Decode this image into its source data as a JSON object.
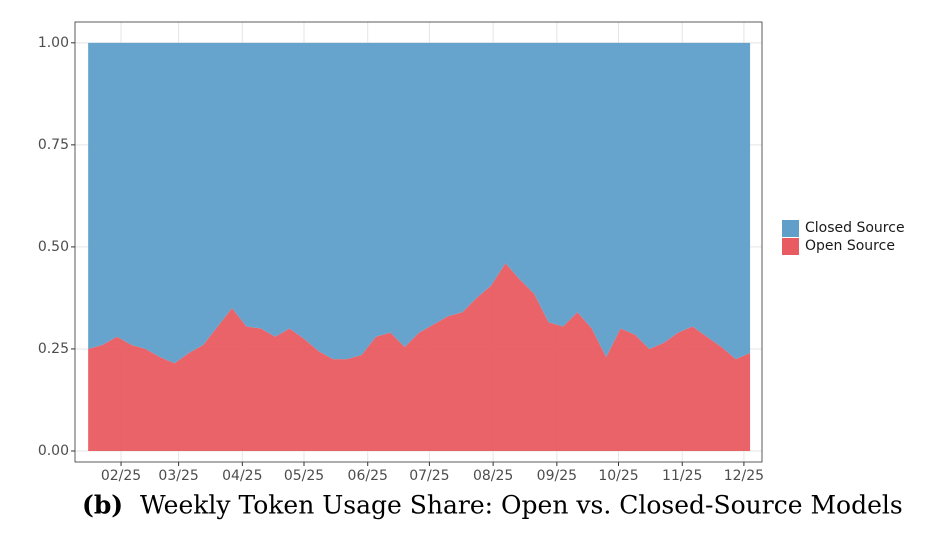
{
  "chart_data": {
    "type": "stacked_area",
    "caption_label": "(b)",
    "caption": "Weekly Token Usage Share: Open vs. Closed-Source Models",
    "x": [
      16,
      23,
      30,
      37,
      44,
      51,
      58,
      65,
      72,
      79,
      86,
      93,
      100,
      107,
      114,
      121,
      128,
      135,
      142,
      149,
      156,
      163,
      170,
      177,
      184,
      191,
      198,
      205,
      212,
      219,
      226,
      233,
      240,
      247,
      254,
      261,
      268,
      275,
      282,
      289,
      296,
      303,
      310,
      317,
      324,
      331,
      338
    ],
    "xlim": [
      9.6,
      343.8
    ],
    "xticks": [
      {
        "value": 32,
        "label": "02/25"
      },
      {
        "value": 60,
        "label": "03/25"
      },
      {
        "value": 91,
        "label": "04/25"
      },
      {
        "value": 121,
        "label": "05/25"
      },
      {
        "value": 152,
        "label": "06/25"
      },
      {
        "value": 182,
        "label": "07/25"
      },
      {
        "value": 213,
        "label": "08/25"
      },
      {
        "value": 244,
        "label": "09/25"
      },
      {
        "value": 274,
        "label": "10/25"
      },
      {
        "value": 305,
        "label": "11/25"
      },
      {
        "value": 335,
        "label": "12/25"
      }
    ],
    "ylim": [
      -0.027,
      1.051
    ],
    "yticks": [
      {
        "value": 0,
        "label": "0.00"
      },
      {
        "value": 0.25,
        "label": "0.25"
      },
      {
        "value": 0.5,
        "label": "0.50"
      },
      {
        "value": 0.75,
        "label": "0.75"
      },
      {
        "value": 1,
        "label": "1.00"
      }
    ],
    "grid": true,
    "legend": "right",
    "series": [
      {
        "name": "Closed Source",
        "color": "#5f9fca",
        "values": [
          0.75,
          0.74,
          0.72,
          0.74,
          0.75,
          0.77,
          0.785,
          0.76,
          0.74,
          0.695,
          0.65,
          0.695,
          0.7,
          0.72,
          0.7,
          0.725,
          0.755,
          0.775,
          0.775,
          0.765,
          0.72,
          0.71,
          0.745,
          0.71,
          0.69,
          0.67,
          0.66,
          0.625,
          0.595,
          0.54,
          0.58,
          0.615,
          0.685,
          0.695,
          0.66,
          0.7,
          0.77,
          0.7,
          0.715,
          0.75,
          0.735,
          0.71,
          0.695,
          0.72,
          0.745,
          0.775,
          0.76
        ]
      },
      {
        "name": "Open Source",
        "color": "#e85b60",
        "values": [
          0.25,
          0.26,
          0.28,
          0.26,
          0.25,
          0.23,
          0.215,
          0.24,
          0.26,
          0.305,
          0.35,
          0.305,
          0.3,
          0.28,
          0.3,
          0.275,
          0.245,
          0.225,
          0.225,
          0.235,
          0.28,
          0.29,
          0.255,
          0.29,
          0.31,
          0.33,
          0.34,
          0.375,
          0.405,
          0.46,
          0.42,
          0.385,
          0.315,
          0.305,
          0.34,
          0.3,
          0.23,
          0.3,
          0.285,
          0.25,
          0.265,
          0.29,
          0.305,
          0.28,
          0.255,
          0.225,
          0.24
        ]
      }
    ]
  }
}
